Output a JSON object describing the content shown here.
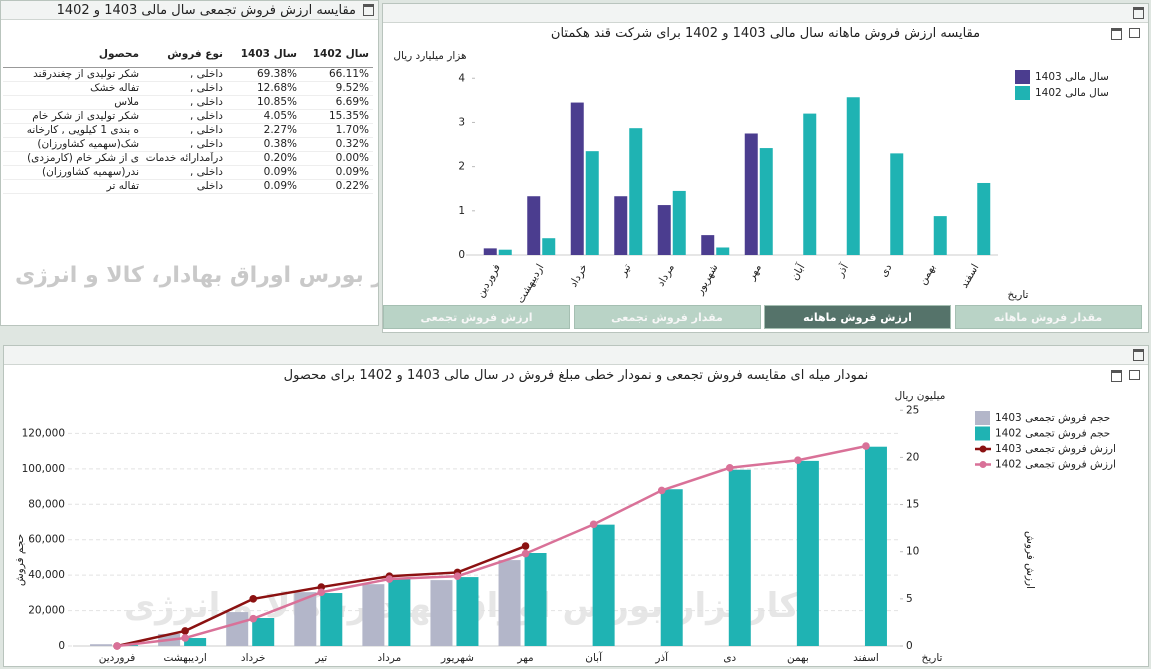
{
  "table": {
    "title": "مقایسه ارزش فروش تجمعی سال مالی 1403 و 1402",
    "columns": [
      "محصول",
      "نوع فروش",
      "سال 1403",
      "سال 1402"
    ],
    "rows": [
      [
        "شکر تولیدی از چغندرقند",
        "داخلی ,",
        "69.38%",
        "66.11%"
      ],
      [
        "تفاله خشک",
        "داخلی ,",
        "12.68%",
        "9.52%"
      ],
      [
        "ملاس",
        "داخلی ,",
        "10.85%",
        "6.69%"
      ],
      [
        "شکر تولیدی از شکر خام",
        "داخلی ,",
        "4.05%",
        "15.35%"
      ],
      [
        "ه بندی 1 کیلویی , کارخانه",
        "داخلی ,",
        "2.27%",
        "1.70%"
      ],
      [
        "شک(سهمیه کشاورزان)",
        "داخلی ,",
        "0.38%",
        "0.32%"
      ],
      [
        "ی از شکر خام (کارمزدی)",
        "درآمدارائه خدمات",
        "0.20%",
        "0.00%"
      ],
      [
        "ندر(سهمیه کشاورزان)",
        "داخلی ,",
        "0.09%",
        "0.09%"
      ],
      [
        "تفاله تر",
        "داخلی",
        "0.09%",
        "0.22%"
      ]
    ]
  },
  "tabs": [
    "ارزش فروش تجمعی",
    "مقدار فروش تجمعی",
    "ارزش فروش ماهانه",
    "مقدار فروش ماهانه"
  ],
  "watermark": "کارگزار بورس اوراق بهادار، کالا و انرژی",
  "chart_data": [
    {
      "type": "bar",
      "title": "مقایسه ارزش فروش ماهانه سال مالی 1403 و 1402 برای شرکت قند هکمتان",
      "ylabel": "هزار میلیارد ریال",
      "xlabel": "تاریخ",
      "categories": [
        "فروردین",
        "اردیبهشت",
        "خرداد",
        "تیر",
        "مرداد",
        "شهریور",
        "مهر",
        "آبان",
        "آذر",
        "دی",
        "بهمن",
        "اسفند"
      ],
      "series": [
        {
          "name": "سال مالی 1403",
          "color": "#4b3d8f",
          "values": [
            0.15,
            1.33,
            3.45,
            1.33,
            1.13,
            0.45,
            2.75,
            null,
            null,
            null,
            null,
            null
          ]
        },
        {
          "name": "سال مالی 1402",
          "color": "#1fb3b3",
          "values": [
            0.12,
            0.38,
            2.35,
            2.87,
            1.45,
            0.17,
            2.42,
            3.2,
            3.57,
            2.3,
            0.88,
            1.63
          ]
        }
      ],
      "ylim": [
        0,
        4.3
      ],
      "yticks": [
        0,
        1,
        2,
        3,
        4
      ],
      "legend": "right"
    },
    {
      "type": "combo",
      "title": "نمودار میله ای مقایسه فروش تجمعی و نمودار خطی مبلغ فروش در سال مالی 1403 و 1402 برای محصول",
      "ylabel": "حجم فروش",
      "y2label": "ارزش فروش",
      "y2unit": "میلیون ریال",
      "xlabel": "تاریخ",
      "categories": [
        "فروردین",
        "اردیبهشت",
        "خرداد",
        "تیر",
        "مرداد",
        "شهریور",
        "مهر",
        "آبان",
        "آذر",
        "دی",
        "بهمن",
        "اسفند"
      ],
      "series": [
        {
          "name": "حجم فروش تجمعی 1403",
          "type": "bar",
          "color": "#b3b6c9",
          "values": [
            1000,
            6800,
            19150,
            30400,
            34900,
            37200,
            48500,
            null,
            null,
            null,
            null,
            null
          ]
        },
        {
          "name": "حجم فروش تجمعی 1402",
          "type": "bar",
          "color": "#1fb3b3",
          "values": [
            500,
            4500,
            15800,
            29900,
            38300,
            38900,
            52500,
            68500,
            88500,
            99500,
            104500,
            112500
          ]
        },
        {
          "name": "ارزش فروش تجمعی 1403",
          "type": "line",
          "axis": "y2",
          "color": "#8b1111",
          "values": [
            0,
            1.6,
            5.0,
            6.25,
            7.4,
            7.8,
            10.6,
            null,
            null,
            null,
            null,
            null
          ]
        },
        {
          "name": "ارزش فروش تجمعی 1402",
          "type": "line",
          "axis": "y2",
          "color": "#d97198",
          "values": [
            0,
            0.85,
            2.9,
            5.7,
            7.1,
            7.4,
            9.8,
            12.9,
            16.5,
            18.9,
            19.7,
            21.2
          ]
        }
      ],
      "ylim": [
        0,
        140000
      ],
      "yticks": [
        0,
        {
          "value": 20000,
          "label": "20,000"
        },
        {
          "value": 40000,
          "label": "40,000"
        },
        {
          "value": 60000,
          "label": "60,000"
        },
        {
          "value": 80000,
          "label": "80,000"
        },
        {
          "value": 100000,
          "label": "100,000"
        },
        {
          "value": 120000,
          "label": "120,000"
        }
      ],
      "y2lim": [
        0,
        26.3
      ],
      "y2ticks": [
        0,
        5,
        10,
        15,
        20,
        25
      ],
      "grid": true,
      "legend": "right"
    }
  ]
}
